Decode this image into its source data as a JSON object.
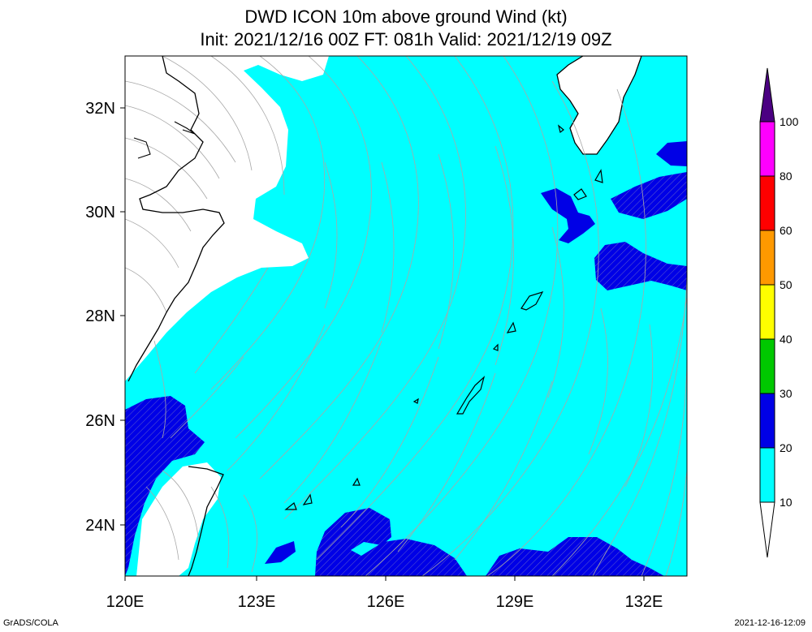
{
  "title": {
    "line1": "DWD ICON 10m above ground Wind (kt)",
    "line2": "Init: 2021/12/16 00Z  FT: 081h  Valid: 2021/12/19 09Z"
  },
  "map": {
    "lon_labels": [
      "120E",
      "123E",
      "126E",
      "129E",
      "132E"
    ],
    "lat_labels": [
      "32N",
      "30N",
      "28N",
      "26N",
      "24N"
    ]
  },
  "legend": {
    "labels": [
      "100",
      "80",
      "60",
      "50",
      "40",
      "30",
      "20",
      "10"
    ],
    "colors": {
      "over_100": "#4b0082",
      "80_100": "#ff00ff",
      "60_80": "#ff0000",
      "50_60": "#ff9900",
      "40_50": "#ffff00",
      "30_40": "#00c800",
      "20_30": "#0000e6",
      "10_20": "#00ffff",
      "under_10": "#ffffff"
    }
  },
  "footer": {
    "left": "GrADS/COLA",
    "right": "2021-12-16-12:09"
  }
}
